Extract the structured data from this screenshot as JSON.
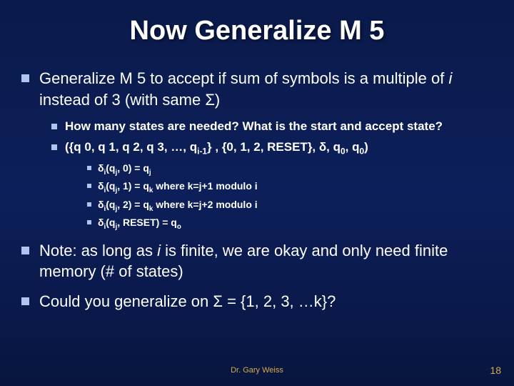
{
  "title": "Now Generalize M 5",
  "bullets": {
    "l1_1_a": "Generalize M 5 to accept if sum of symbols is a multiple of ",
    "l1_1_i": "i",
    "l1_1_b": " instead of 3 (with same Σ)",
    "l2_1": "How many states are needed? What is the start and accept state?",
    "l2_2_a": "({q 0, q 1, q 2, q 3, …, q",
    "l2_2_sub1": "i-1",
    "l2_2_b": "} , {0, 1, 2, RESET}, δ, q",
    "l2_2_sub2": "0",
    "l2_2_c": ", q",
    "l2_2_sub3": "0",
    "l2_2_d": ")",
    "l3_1_a": "δ",
    "l3_1_sub1": "i",
    "l3_1_b": "(q",
    "l3_1_sub2": "j",
    "l3_1_c": ", 0) = q",
    "l3_1_sub3": "j",
    "l3_2_a": "δ",
    "l3_2_sub1": "i",
    "l3_2_b": "(q",
    "l3_2_sub2": "j",
    "l3_2_c": ", 1) = q",
    "l3_2_sub3": "k",
    "l3_2_d": " where k=j+1 modulo i",
    "l3_3_a": "δ",
    "l3_3_sub1": "i",
    "l3_3_b": "(q",
    "l3_3_sub2": "j",
    "l3_3_c": ", 2) = q",
    "l3_3_sub3": "k",
    "l3_3_d": " where k=j+2 modulo i",
    "l3_4_a": "δ",
    "l3_4_sub1": "i",
    "l3_4_b": "(q",
    "l3_4_sub2": "j",
    "l3_4_c": ", RESET) = q",
    "l3_4_sub3": "o",
    "l1_2_a": "Note: as long as ",
    "l1_2_i": "i",
    "l1_2_b": " is finite, we are okay and only need finite memory (# of states)",
    "l1_3": "Could you generalize on Σ = {1, 2, 3, …k}?"
  },
  "footer": {
    "author": "Dr. Gary Weiss",
    "page": "18"
  },
  "colors": {
    "bg_top": "#0a1a4a",
    "bg_bottom": "#081540",
    "bullet": "#b0c4f0",
    "text": "#ffffff",
    "footer": "#d6ac4a"
  }
}
